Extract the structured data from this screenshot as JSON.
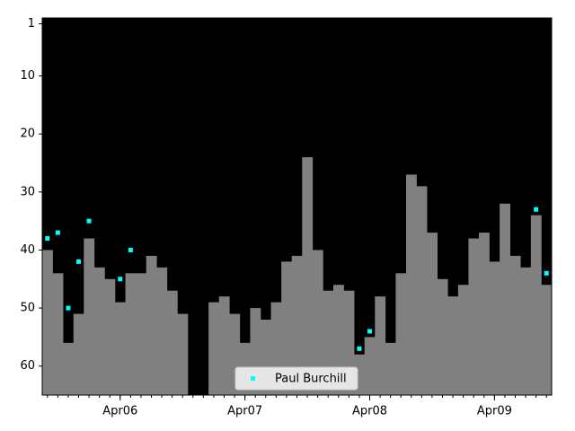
{
  "chart_data": {
    "type": "bar",
    "x": [
      "2005-09",
      "2005-10",
      "2005-11",
      "2005-12",
      "2006-01",
      "2006-02",
      "2006-03",
      "2006-04",
      "2006-05",
      "2006-06",
      "2006-07",
      "2006-08",
      "2006-09",
      "2006-10",
      "2006-11",
      "2006-12",
      "2007-01",
      "2007-02",
      "2007-03",
      "2007-04",
      "2007-05",
      "2007-06",
      "2007-07",
      "2007-08",
      "2007-09",
      "2007-10",
      "2007-11",
      "2007-12",
      "2008-01",
      "2008-02",
      "2008-03",
      "2008-04",
      "2008-05",
      "2008-06",
      "2008-07",
      "2008-08",
      "2008-09",
      "2008-10",
      "2008-11",
      "2008-12",
      "2009-01",
      "2009-02",
      "2009-03",
      "2009-04",
      "2009-05",
      "2009-06",
      "2009-07",
      "2009-08",
      "2009-09"
    ],
    "bars": {
      "color": "#808080",
      "values": [
        40,
        44,
        56,
        51,
        38,
        43,
        45,
        49,
        44,
        44,
        41,
        43,
        47,
        51,
        null,
        null,
        49,
        48,
        51,
        56,
        50,
        52,
        49,
        42,
        41,
        24,
        40,
        47,
        46,
        47,
        58,
        55,
        48,
        56,
        44,
        27,
        29,
        37,
        45,
        48,
        46,
        38,
        37,
        42,
        32,
        41,
        43,
        34,
        46
      ]
    },
    "series": [
      {
        "name": "Paul Burchill",
        "color": "#00ffff",
        "values": [
          38,
          37,
          50,
          42,
          35,
          null,
          null,
          45,
          40,
          null,
          null,
          null,
          null,
          null,
          null,
          null,
          null,
          null,
          null,
          null,
          null,
          null,
          null,
          null,
          null,
          null,
          null,
          null,
          null,
          null,
          57,
          54,
          null,
          null,
          null,
          null,
          null,
          null,
          null,
          null,
          null,
          null,
          null,
          null,
          null,
          null,
          null,
          33,
          44
        ]
      }
    ],
    "ylim": [
      65,
      0
    ],
    "yticks": [
      1,
      10,
      20,
      30,
      40,
      50,
      60
    ],
    "xticks": [
      {
        "value": "2006-04",
        "label": "Apr06"
      },
      {
        "value": "2007-04",
        "label": "Apr07"
      },
      {
        "value": "2008-04",
        "label": "Apr08"
      },
      {
        "value": "2009-04",
        "label": "Apr09"
      }
    ],
    "background": "#000000",
    "legend": "lower center"
  }
}
